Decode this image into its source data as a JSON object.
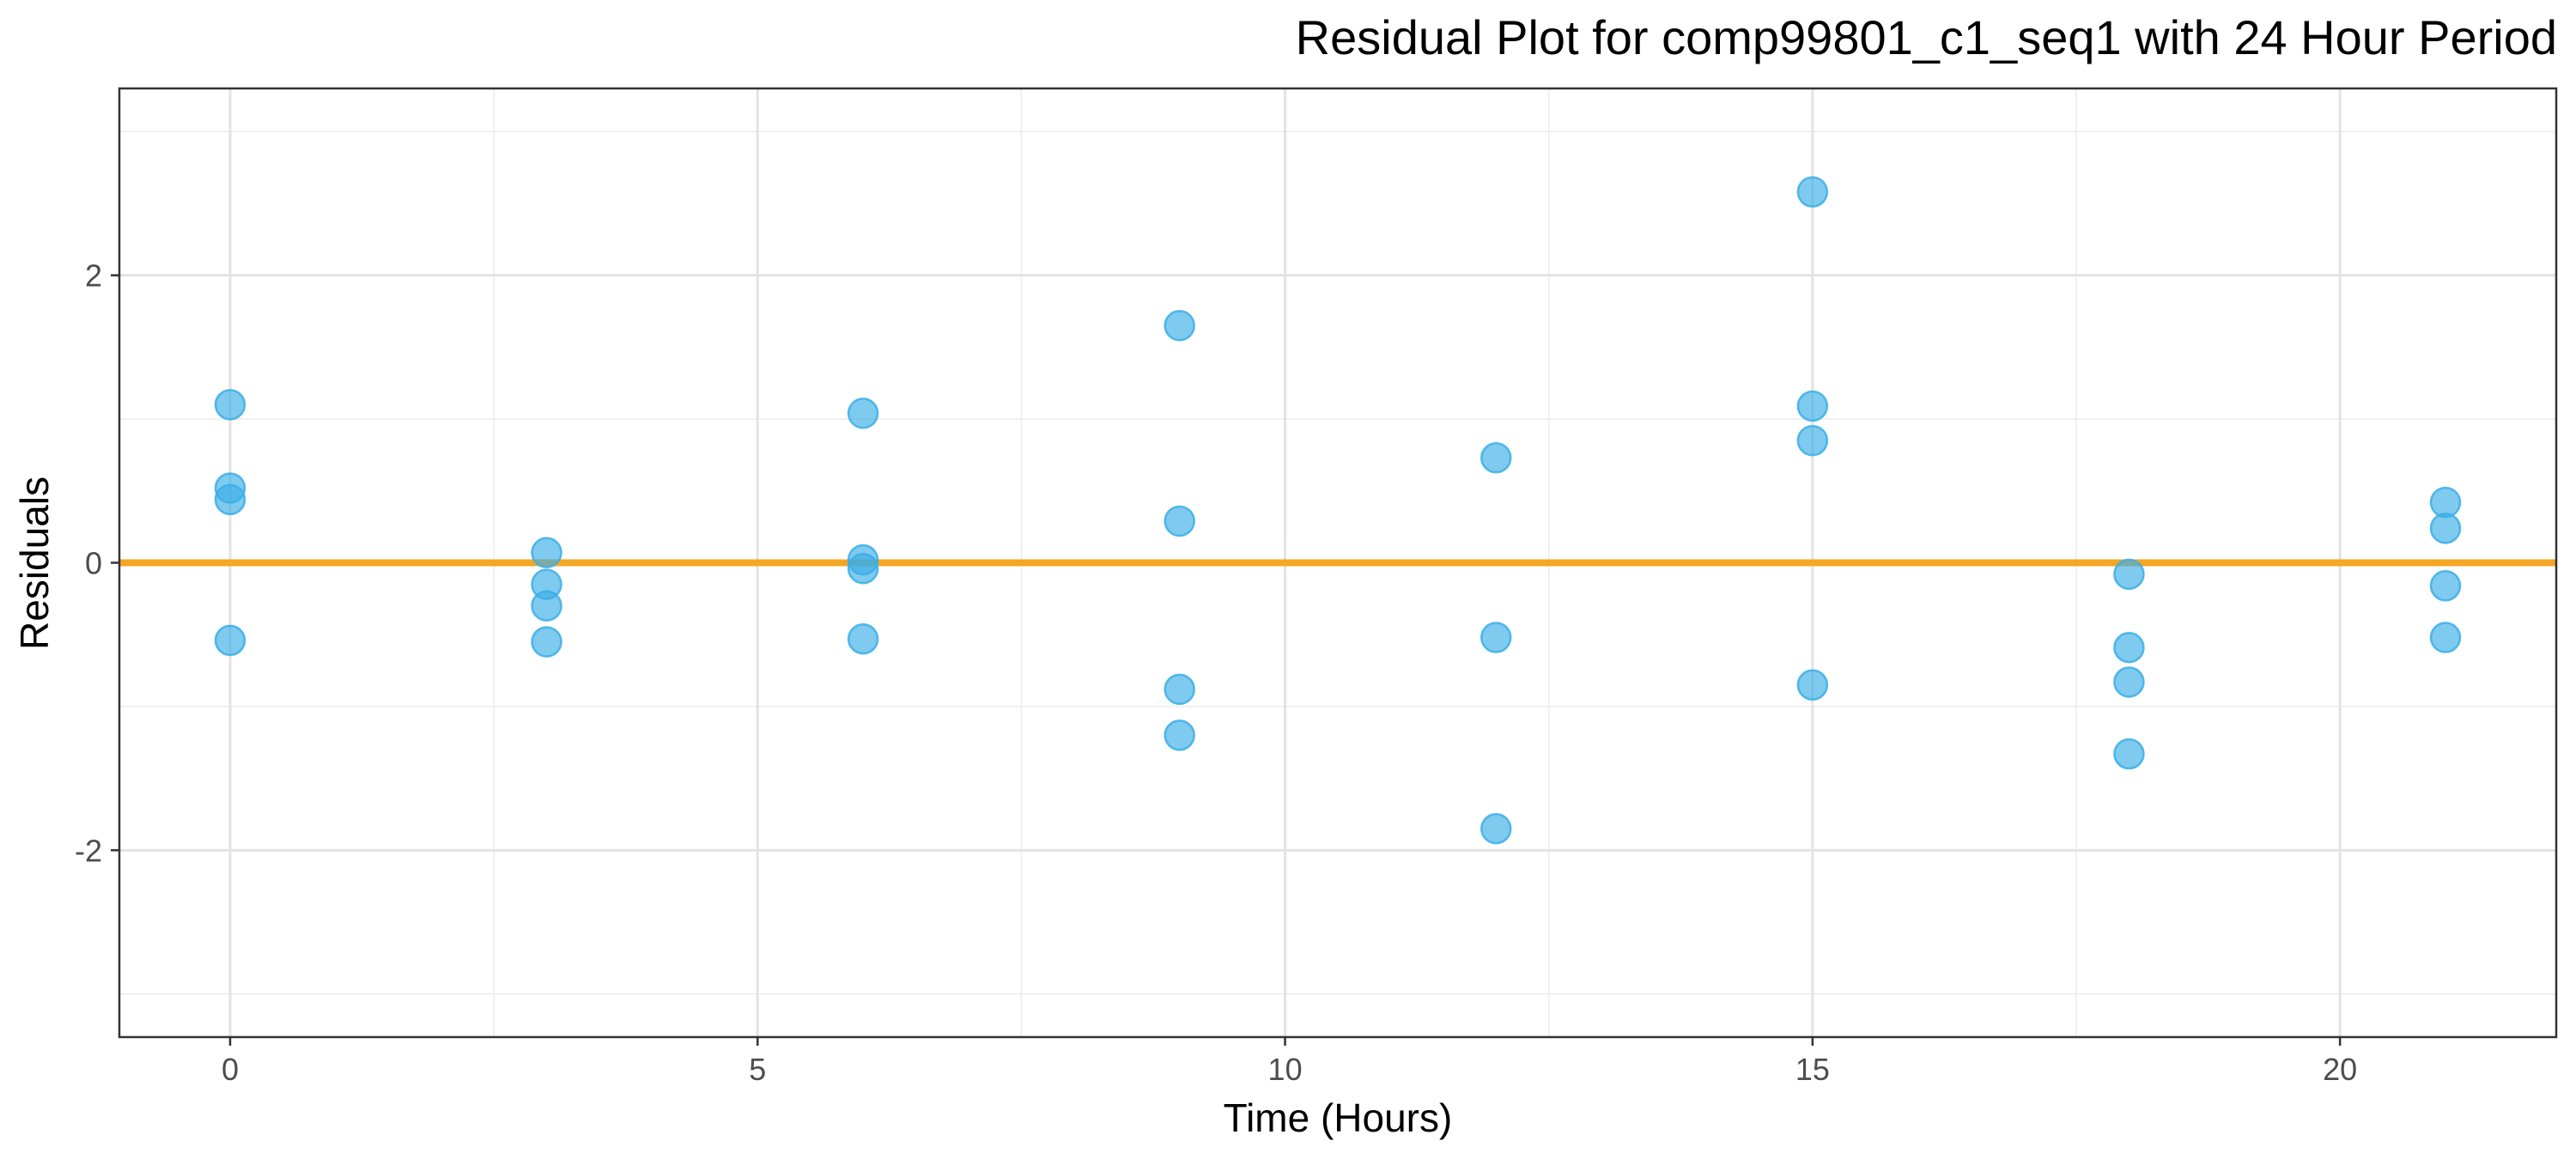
{
  "chart_data": {
    "type": "scatter",
    "title": "Residual Plot for comp99801_c1_seq1 with 24 Hour Period",
    "xlabel": "Time (Hours)",
    "ylabel": "Residuals",
    "xlim": [
      -1.05,
      22.05
    ],
    "ylim": [
      -3.3,
      3.3
    ],
    "x_ticks": [
      0,
      5,
      10,
      15,
      20
    ],
    "x_tick_labels": [
      "0",
      "5",
      "10",
      "15",
      "20"
    ],
    "x_minor_ticks": [
      2.5,
      7.5,
      12.5,
      17.5
    ],
    "y_ticks": [
      -2,
      0,
      2
    ],
    "y_tick_labels": [
      "-2",
      "0",
      "2"
    ],
    "y_minor_ticks": [
      -3,
      -1,
      1,
      3
    ],
    "grid": true,
    "reference_line": {
      "y": 0,
      "color": "#f5a623"
    },
    "point_color": "#3aaee6",
    "series": [
      {
        "name": "residuals",
        "x": [
          0,
          0,
          0,
          0,
          3,
          3,
          3,
          3,
          6,
          6,
          6,
          6,
          9,
          9,
          9,
          9,
          12,
          12,
          12,
          15,
          15,
          15,
          15,
          18,
          18,
          18,
          18,
          21,
          21,
          21,
          21
        ],
        "y": [
          1.1,
          0.52,
          0.44,
          -0.54,
          0.07,
          -0.15,
          -0.3,
          -0.55,
          1.04,
          0.02,
          -0.04,
          -0.53,
          1.65,
          0.29,
          -0.88,
          -1.2,
          0.73,
          -0.52,
          -1.85,
          2.58,
          1.09,
          0.85,
          -0.85,
          -0.08,
          -0.59,
          -0.83,
          -1.33,
          0.42,
          0.24,
          -0.16,
          -0.52
        ]
      }
    ]
  }
}
